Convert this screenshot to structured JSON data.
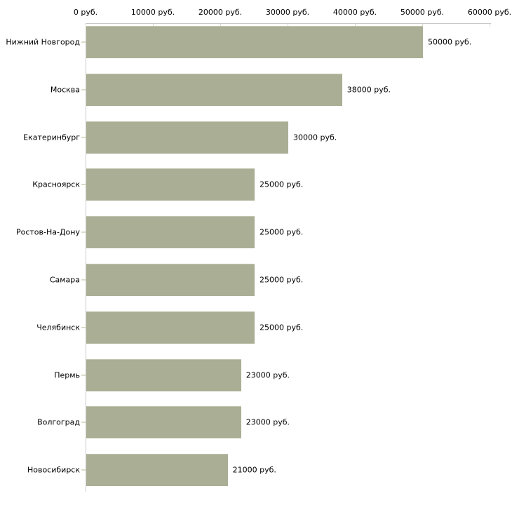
{
  "page": {
    "background": "#ffffff"
  },
  "chart_data": {
    "type": "bar",
    "orientation": "horizontal",
    "title": "",
    "xlabel": "",
    "ylabel": "",
    "x_axis_position": "top",
    "xlim": [
      0,
      60000
    ],
    "grid": false,
    "legend_position": "none",
    "x_ticks": [
      0,
      10000,
      20000,
      30000,
      40000,
      50000,
      60000
    ],
    "x_tick_labels": [
      "0 руб.",
      "10000 руб.",
      "20000 руб.",
      "30000 руб.",
      "40000 руб.",
      "50000 руб.",
      "60000 руб."
    ],
    "categories": [
      "Нижний Новгород",
      "Москва",
      "Екатеринбург",
      "Красноярск",
      "Ростов-На-Дону",
      "Самара",
      "Челябинск",
      "Пермь",
      "Волгоград",
      "Новосибирск"
    ],
    "values": [
      50000,
      38000,
      30000,
      25000,
      25000,
      25000,
      25000,
      23000,
      23000,
      21000
    ],
    "bar_labels": [
      "50000 руб.",
      "38000 руб.",
      "30000 руб.",
      "25000 руб.",
      "25000 руб.",
      "25000 руб.",
      "25000 руб.",
      "23000 руб.",
      "23000 руб.",
      "21000 руб."
    ],
    "colors": {
      "bar_fill": "#aaae94",
      "bar_edge_top": "#c3c6b2",
      "axis_line": "#c9c9c9",
      "tick_mark": "#d9dcc8",
      "label_text": "#000000",
      "background": "#ffffff"
    }
  }
}
